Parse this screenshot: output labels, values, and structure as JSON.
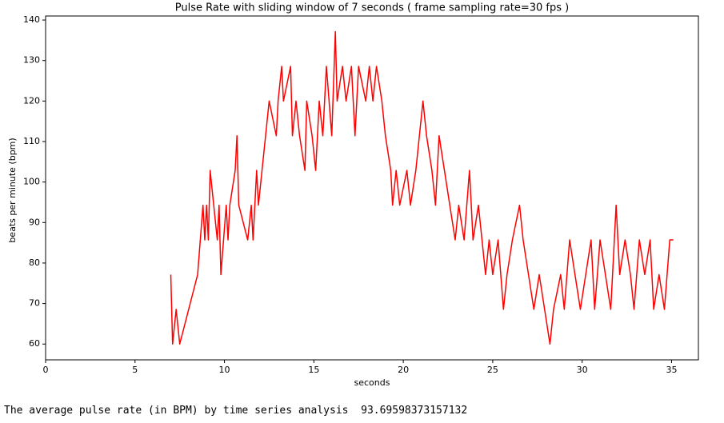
{
  "chart_data": {
    "type": "line",
    "title": "Pulse Rate with sliding window of 7 seconds  ( frame sampling rate=30 fps )",
    "xlabel": "seconds",
    "ylabel": "beats per minute (bpm)",
    "xlim": [
      0,
      36.5
    ],
    "ylim": [
      56.1,
      141.0
    ],
    "xticks": [
      0,
      5,
      10,
      15,
      20,
      25,
      30,
      35
    ],
    "yticks": [
      60,
      70,
      80,
      90,
      100,
      110,
      120,
      130,
      140
    ],
    "grid": false,
    "series": [
      {
        "color": "#ff0000",
        "x": [
          7.0,
          7.1,
          7.3,
          7.5,
          8.0,
          8.5,
          8.8,
          8.9,
          9.0,
          9.1,
          9.2,
          9.4,
          9.6,
          9.7,
          9.8,
          10.1,
          10.2,
          10.3,
          10.6,
          10.7,
          10.8,
          11.3,
          11.5,
          11.6,
          11.8,
          11.9,
          12.1,
          12.3,
          12.5,
          12.9,
          13.0,
          13.2,
          13.3,
          13.7,
          13.8,
          14.0,
          14.2,
          14.5,
          14.6,
          14.9,
          15.1,
          15.3,
          15.5,
          15.7,
          16.0,
          16.2,
          16.3,
          16.6,
          16.8,
          17.1,
          17.3,
          17.5,
          17.9,
          18.1,
          18.3,
          18.5,
          18.8,
          19.0,
          19.3,
          19.4,
          19.6,
          19.8,
          20.2,
          20.4,
          20.7,
          20.9,
          21.1,
          21.3,
          21.6,
          21.8,
          22.0,
          22.3,
          22.6,
          22.9,
          23.1,
          23.4,
          23.7,
          23.9,
          24.2,
          24.6,
          24.8,
          25.0,
          25.3,
          25.6,
          25.8,
          26.1,
          26.5,
          26.7,
          27.0,
          27.3,
          27.6,
          27.9,
          28.2,
          28.4,
          28.8,
          29.0,
          29.3,
          29.6,
          29.9,
          30.2,
          30.5,
          30.7,
          31.0,
          31.3,
          31.6,
          31.9,
          32.1,
          32.4,
          32.7,
          32.9,
          33.2,
          33.5,
          33.8,
          34.0,
          34.3,
          34.6,
          34.9,
          35.1
        ],
        "values": [
          77.14,
          60,
          68.57,
          60,
          68.57,
          77.14,
          94.29,
          85.71,
          94.29,
          85.71,
          102.86,
          94.29,
          85.71,
          94.29,
          77.14,
          94.29,
          85.71,
          94.29,
          102.86,
          111.43,
          94.29,
          85.71,
          94.29,
          85.71,
          102.86,
          94.29,
          102.86,
          111.43,
          120,
          111.43,
          120,
          128.57,
          120,
          128.57,
          111.43,
          120,
          111.43,
          102.86,
          120,
          111.43,
          102.86,
          120,
          111.43,
          128.57,
          111.43,
          137.14,
          120,
          128.57,
          120,
          128.57,
          111.43,
          128.57,
          120,
          128.57,
          120,
          128.57,
          120,
          111.43,
          102.86,
          94.29,
          102.86,
          94.29,
          102.86,
          94.29,
          102.86,
          111.43,
          120,
          111.43,
          102.86,
          94.29,
          111.43,
          102.86,
          94.29,
          85.71,
          94.29,
          85.71,
          102.86,
          85.71,
          94.29,
          77.14,
          85.71,
          77.14,
          85.71,
          68.57,
          77.14,
          85.71,
          94.29,
          85.71,
          77.14,
          68.57,
          77.14,
          68.57,
          60,
          68.57,
          77.14,
          68.57,
          85.71,
          77.14,
          68.57,
          77.14,
          85.71,
          68.57,
          85.71,
          77.14,
          68.57,
          94.29,
          77.14,
          85.71,
          77.14,
          68.57,
          85.71,
          77.14,
          85.71,
          68.57,
          77.14,
          68.57,
          85.71,
          85.71
        ]
      }
    ]
  },
  "output_text": "The average pulse rate (in BPM) by time series analysis  93.69598373157132"
}
